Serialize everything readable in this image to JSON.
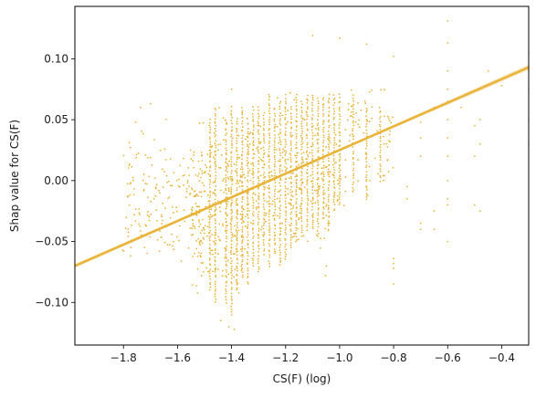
{
  "chart_data": {
    "type": "scatter",
    "title": "",
    "xlabel": "CS(F) (log)",
    "ylabel": "Shap value for CS(F)",
    "xlim": [
      -1.98,
      -0.3
    ],
    "ylim": [
      -0.135,
      0.143
    ],
    "x_ticks": [
      -1.8,
      -1.6,
      -1.4,
      -1.2,
      -1.0,
      -0.8,
      -0.6,
      -0.4
    ],
    "x_tick_labels": [
      "−1.8",
      "−1.6",
      "−1.4",
      "−1.2",
      "−1.0",
      "−0.8",
      "−0.6",
      "−0.4"
    ],
    "y_ticks": [
      -0.1,
      -0.05,
      0.0,
      0.05,
      0.1
    ],
    "y_tick_labels": [
      "−0.10",
      "−0.05",
      "0.00",
      "0.05",
      "0.10"
    ],
    "grid": false,
    "color": "#e8b43a",
    "regression": {
      "x": [
        -1.98,
        -0.3
      ],
      "y": [
        -0.07,
        0.093
      ],
      "ci_band": true
    },
    "columns": [
      {
        "x": -1.48,
        "ymin": -0.09,
        "ymax": 0.05
      },
      {
        "x": -1.46,
        "ymin": -0.1,
        "ymax": 0.06
      },
      {
        "x": -1.42,
        "ymin": -0.1,
        "ymax": 0.05
      },
      {
        "x": -1.4,
        "ymin": -0.11,
        "ymax": 0.06
      },
      {
        "x": -1.38,
        "ymin": -0.09,
        "ymax": 0.05
      },
      {
        "x": -1.36,
        "ymin": -0.08,
        "ymax": 0.06
      },
      {
        "x": -1.34,
        "ymin": -0.085,
        "ymax": 0.05
      },
      {
        "x": -1.32,
        "ymin": -0.07,
        "ymax": 0.06
      },
      {
        "x": -1.3,
        "ymin": -0.075,
        "ymax": 0.06
      },
      {
        "x": -1.28,
        "ymin": -0.06,
        "ymax": 0.055
      },
      {
        "x": -1.26,
        "ymin": -0.07,
        "ymax": 0.07
      },
      {
        "x": -1.24,
        "ymin": -0.06,
        "ymax": 0.06
      },
      {
        "x": -1.22,
        "ymin": -0.07,
        "ymax": 0.065
      },
      {
        "x": -1.2,
        "ymin": -0.065,
        "ymax": 0.07
      },
      {
        "x": -1.18,
        "ymin": -0.055,
        "ymax": 0.06
      },
      {
        "x": -1.16,
        "ymin": -0.05,
        "ymax": 0.07
      },
      {
        "x": -1.14,
        "ymin": -0.045,
        "ymax": 0.065
      },
      {
        "x": -1.12,
        "ymin": -0.04,
        "ymax": 0.07
      },
      {
        "x": -1.1,
        "ymin": -0.04,
        "ymax": 0.07
      },
      {
        "x": -1.08,
        "ymin": -0.045,
        "ymax": 0.068
      },
      {
        "x": -1.06,
        "ymin": -0.03,
        "ymax": 0.068
      },
      {
        "x": -1.04,
        "ymin": -0.04,
        "ymax": 0.07
      },
      {
        "x": -1.02,
        "ymin": -0.025,
        "ymax": 0.07
      },
      {
        "x": -1.0,
        "ymin": -0.02,
        "ymax": 0.07
      },
      {
        "x": -0.95,
        "ymin": -0.01,
        "ymax": 0.07
      },
      {
        "x": -0.9,
        "ymin": -0.015,
        "ymax": 0.06
      },
      {
        "x": -0.85,
        "ymin": 0.0,
        "ymax": 0.06
      }
    ],
    "sparse_regions": [
      {
        "x_range": [
          -1.8,
          -1.5
        ],
        "y_range": [
          -0.09,
          0.06
        ],
        "n": 170
      },
      {
        "x_range": [
          -1.55,
          -1.35
        ],
        "y_range": [
          -0.12,
          0.075
        ],
        "n": 260
      },
      {
        "x_range": [
          -1.35,
          -1.0
        ],
        "y_range": [
          -0.09,
          0.09
        ],
        "n": 220
      },
      {
        "x_range": [
          -1.0,
          -0.8
        ],
        "y_range": [
          -0.04,
          0.11
        ],
        "n": 70
      }
    ],
    "outliers": [
      [
        -1.755,
        0.048
      ],
      [
        -1.737,
        0.06
      ],
      [
        -1.7,
        0.063
      ],
      [
        -1.722,
        -0.055
      ],
      [
        -1.667,
        -0.058
      ],
      [
        -1.803,
        -0.057
      ],
      [
        -1.76,
        -0.028
      ],
      [
        -1.44,
        -0.115
      ],
      [
        -1.41,
        -0.12
      ],
      [
        -1.39,
        -0.122
      ],
      [
        -1.4,
        0.075
      ],
      [
        -1.1,
        0.119
      ],
      [
        -1.0,
        0.117
      ],
      [
        -0.9,
        0.112
      ],
      [
        -0.8,
        0.102
      ],
      [
        -0.8,
        -0.085
      ],
      [
        -0.8,
        -0.064
      ],
      [
        -0.8,
        -0.068
      ],
      [
        -0.8,
        -0.072
      ],
      [
        -0.75,
        -0.005
      ],
      [
        -0.75,
        -0.015
      ],
      [
        -0.7,
        0.048
      ],
      [
        -0.7,
        0.035
      ],
      [
        -0.7,
        0.02
      ],
      [
        -0.7,
        -0.035
      ],
      [
        -0.7,
        -0.04
      ],
      [
        -0.65,
        -0.025
      ],
      [
        -0.65,
        -0.04
      ],
      [
        -0.65,
        0.06
      ],
      [
        -0.6,
        0.131
      ],
      [
        -0.6,
        0.113
      ],
      [
        -0.6,
        0.09
      ],
      [
        -0.6,
        0.075
      ],
      [
        -0.6,
        0.065
      ],
      [
        -0.6,
        0.05
      ],
      [
        -0.6,
        0.035
      ],
      [
        -0.6,
        0.02
      ],
      [
        -0.6,
        0.0
      ],
      [
        -0.6,
        -0.015
      ],
      [
        -0.6,
        -0.02
      ],
      [
        -0.6,
        -0.05
      ],
      [
        -0.55,
        0.06
      ],
      [
        -0.5,
        0.045
      ],
      [
        -0.5,
        0.02
      ],
      [
        -0.5,
        -0.02
      ],
      [
        -0.48,
        0.05
      ],
      [
        -0.48,
        0.03
      ],
      [
        -0.48,
        -0.025
      ],
      [
        -0.45,
        0.09
      ],
      [
        -0.4,
        0.078
      ],
      [
        -0.3,
        0.105
      ],
      [
        -0.3,
        0.09
      ],
      [
        -0.3,
        0.075
      ],
      [
        -0.3,
        0.05
      ],
      [
        -0.3,
        0.03
      ]
    ]
  }
}
